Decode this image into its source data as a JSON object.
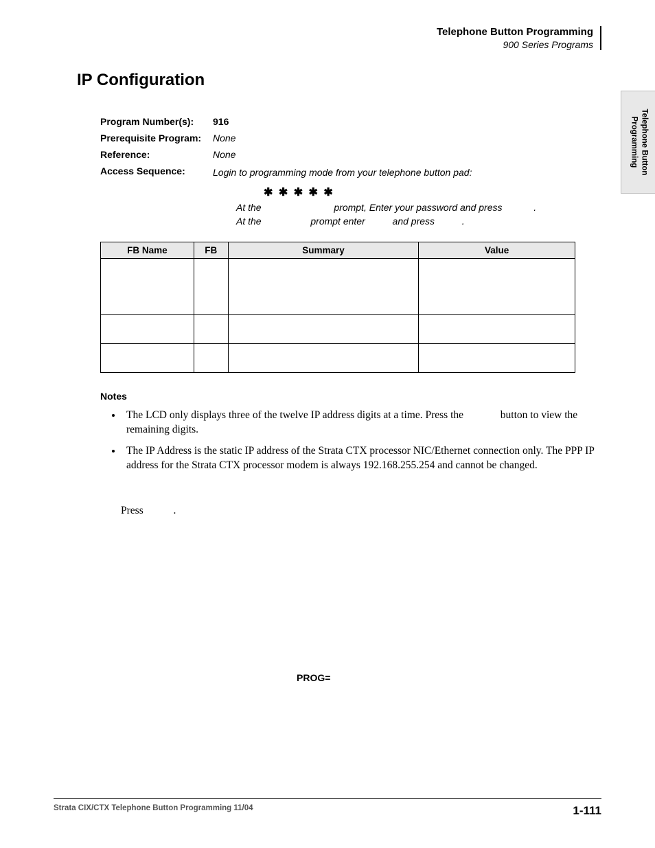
{
  "header": {
    "title": "Telephone Button Programming",
    "subtitle": "900 Series Programs"
  },
  "side_tab": "Telephone Button\nProgramming",
  "main_title": "IP Configuration",
  "meta": {
    "program_number_label": "Program Number(s):",
    "program_number_value": "916",
    "prereq_label": "Prerequisite Program:",
    "prereq_value": "None",
    "reference_label": "Reference:",
    "reference_value": "None",
    "access_label": "Access Sequence:",
    "access_line1": "Login to programming mode from your telephone button pad:",
    "stars": "✱ ✱   ✱ ✱ ✱",
    "access_line2_a": "At the",
    "access_line2_b": "prompt, Enter your password and press",
    "access_line2_c": ".",
    "access_line3_a": "At the",
    "access_line3_b": "prompt enter",
    "access_line3_c": "and press",
    "access_line3_d": "."
  },
  "table": {
    "headers": {
      "fbname": "FB Name",
      "fb": "FB",
      "summary": "Summary",
      "value": "Value"
    },
    "rows": [
      {
        "h": "tall"
      },
      {
        "h": "med"
      },
      {
        "h": "med"
      }
    ]
  },
  "notes": {
    "heading": "Notes",
    "items": [
      {
        "pre": "The LCD only displays three of the twelve IP address digits at a time. Press the",
        "gap": "        ",
        "post": "button to view the remaining digits."
      },
      {
        "text": "The IP Address is the static IP address of the Strata CTX processor NIC/Ethernet connection only. The PPP IP address for the Strata CTX processor modem is always 192.168.255.254 and cannot be changed."
      }
    ]
  },
  "press_line_a": "Press",
  "press_line_b": ".",
  "prog_eq": "PROG=",
  "footer": {
    "left": "Strata CIX/CTX Telephone Button Programming  11/04",
    "right": "1-111"
  },
  "colors": {
    "header_bg": "#e8e8e8",
    "border": "#000000",
    "text": "#000000",
    "footer_grey": "#555555"
  },
  "typography": {
    "title_fontsize_pt": 18,
    "body_fontsize_pt": 12,
    "footer_left_fontsize_pt": 9,
    "footer_right_fontsize_pt": 13
  }
}
